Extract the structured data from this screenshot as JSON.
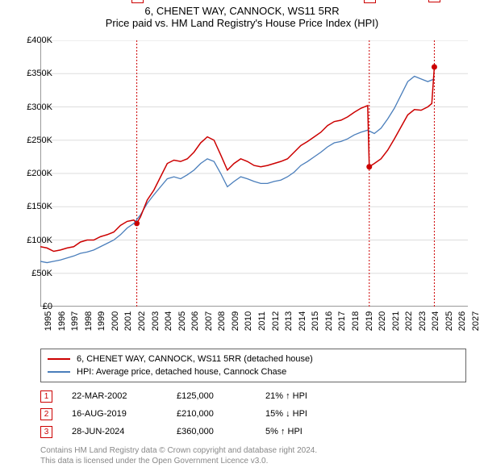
{
  "title_line1": "6, CHENET WAY, CANNOCK, WS11 5RR",
  "title_line2": "Price paid vs. HM Land Registry's House Price Index (HPI)",
  "chart": {
    "type": "line",
    "x_start": 1995,
    "x_end": 2027,
    "y_start": 0,
    "y_end": 400000,
    "y_ticks": [
      0,
      50000,
      100000,
      150000,
      200000,
      250000,
      300000,
      350000,
      400000
    ],
    "y_tick_labels": [
      "£0",
      "£50K",
      "£100K",
      "£150K",
      "£200K",
      "£250K",
      "£300K",
      "£350K",
      "£400K"
    ],
    "x_ticks": [
      1995,
      1996,
      1997,
      1998,
      1999,
      2000,
      2001,
      2002,
      2003,
      2004,
      2005,
      2006,
      2007,
      2008,
      2009,
      2010,
      2011,
      2012,
      2013,
      2014,
      2015,
      2016,
      2017,
      2018,
      2019,
      2020,
      2021,
      2022,
      2023,
      2024,
      2025,
      2026,
      2027
    ],
    "grid_color": "#dddddd",
    "background_color": "#ffffff",
    "axis_color": "#333333",
    "series": [
      {
        "name": "red",
        "color": "#cc0000",
        "width": 1.5,
        "data": [
          [
            1995,
            90000
          ],
          [
            1995.5,
            88000
          ],
          [
            1996,
            83000
          ],
          [
            1996.5,
            85000
          ],
          [
            1997,
            88000
          ],
          [
            1997.5,
            90000
          ],
          [
            1998,
            97000
          ],
          [
            1998.5,
            100000
          ],
          [
            1999,
            100000
          ],
          [
            1999.5,
            105000
          ],
          [
            2000,
            108000
          ],
          [
            2000.5,
            112000
          ],
          [
            2001,
            122000
          ],
          [
            2001.5,
            128000
          ],
          [
            2002,
            130000
          ],
          [
            2002.22,
            125000
          ],
          [
            2002.5,
            135000
          ],
          [
            2003,
            160000
          ],
          [
            2003.5,
            175000
          ],
          [
            2004,
            195000
          ],
          [
            2004.5,
            215000
          ],
          [
            2005,
            220000
          ],
          [
            2005.5,
            218000
          ],
          [
            2006,
            222000
          ],
          [
            2006.5,
            232000
          ],
          [
            2007,
            246000
          ],
          [
            2007.5,
            255000
          ],
          [
            2008,
            250000
          ],
          [
            2008.5,
            228000
          ],
          [
            2009,
            205000
          ],
          [
            2009.5,
            215000
          ],
          [
            2010,
            222000
          ],
          [
            2010.5,
            218000
          ],
          [
            2011,
            212000
          ],
          [
            2011.5,
            210000
          ],
          [
            2012,
            212000
          ],
          [
            2012.5,
            215000
          ],
          [
            2013,
            218000
          ],
          [
            2013.5,
            222000
          ],
          [
            2014,
            232000
          ],
          [
            2014.5,
            242000
          ],
          [
            2015,
            248000
          ],
          [
            2015.5,
            255000
          ],
          [
            2016,
            262000
          ],
          [
            2016.5,
            272000
          ],
          [
            2017,
            278000
          ],
          [
            2017.5,
            280000
          ],
          [
            2018,
            285000
          ],
          [
            2018.5,
            292000
          ],
          [
            2019,
            298000
          ],
          [
            2019.5,
            302000
          ],
          [
            2019.62,
            210000
          ],
          [
            2020,
            215000
          ],
          [
            2020.5,
            222000
          ],
          [
            2021,
            235000
          ],
          [
            2021.5,
            252000
          ],
          [
            2022,
            270000
          ],
          [
            2022.5,
            288000
          ],
          [
            2023,
            296000
          ],
          [
            2023.5,
            295000
          ],
          [
            2024,
            300000
          ],
          [
            2024.3,
            305000
          ],
          [
            2024.49,
            360000
          ]
        ]
      },
      {
        "name": "blue",
        "color": "#4a7ebb",
        "width": 1.3,
        "data": [
          [
            1995,
            68000
          ],
          [
            1995.5,
            66000
          ],
          [
            1996,
            68000
          ],
          [
            1996.5,
            70000
          ],
          [
            1997,
            73000
          ],
          [
            1997.5,
            76000
          ],
          [
            1998,
            80000
          ],
          [
            1998.5,
            82000
          ],
          [
            1999,
            85000
          ],
          [
            1999.5,
            90000
          ],
          [
            2000,
            95000
          ],
          [
            2000.5,
            100000
          ],
          [
            2001,
            108000
          ],
          [
            2001.5,
            118000
          ],
          [
            2002,
            125000
          ],
          [
            2002.5,
            138000
          ],
          [
            2003,
            155000
          ],
          [
            2003.5,
            168000
          ],
          [
            2004,
            180000
          ],
          [
            2004.5,
            192000
          ],
          [
            2005,
            195000
          ],
          [
            2005.5,
            192000
          ],
          [
            2006,
            198000
          ],
          [
            2006.5,
            205000
          ],
          [
            2007,
            215000
          ],
          [
            2007.5,
            222000
          ],
          [
            2008,
            218000
          ],
          [
            2008.5,
            200000
          ],
          [
            2009,
            180000
          ],
          [
            2009.5,
            188000
          ],
          [
            2010,
            195000
          ],
          [
            2010.5,
            192000
          ],
          [
            2011,
            188000
          ],
          [
            2011.5,
            185000
          ],
          [
            2012,
            185000
          ],
          [
            2012.5,
            188000
          ],
          [
            2013,
            190000
          ],
          [
            2013.5,
            195000
          ],
          [
            2014,
            202000
          ],
          [
            2014.5,
            212000
          ],
          [
            2015,
            218000
          ],
          [
            2015.5,
            225000
          ],
          [
            2016,
            232000
          ],
          [
            2016.5,
            240000
          ],
          [
            2017,
            246000
          ],
          [
            2017.5,
            248000
          ],
          [
            2018,
            252000
          ],
          [
            2018.5,
            258000
          ],
          [
            2019,
            262000
          ],
          [
            2019.5,
            265000
          ],
          [
            2020,
            260000
          ],
          [
            2020.5,
            268000
          ],
          [
            2021,
            282000
          ],
          [
            2021.5,
            298000
          ],
          [
            2022,
            318000
          ],
          [
            2022.5,
            338000
          ],
          [
            2023,
            346000
          ],
          [
            2023.5,
            342000
          ],
          [
            2024,
            338000
          ],
          [
            2024.49,
            342000
          ]
        ]
      }
    ],
    "event_markers": [
      {
        "num": "1",
        "x": 2002.22,
        "y": 125000,
        "box_offset_y": -288
      },
      {
        "num": "2",
        "x": 2019.62,
        "y": 210000,
        "box_offset_y": -218
      },
      {
        "num": "3",
        "x": 2024.49,
        "y": 360000,
        "box_offset_y": -95
      }
    ],
    "vline_color": "#cc0000",
    "vline_dash": "2,2"
  },
  "legend": {
    "items": [
      {
        "color": "#cc0000",
        "label": "6, CHENET WAY, CANNOCK, WS11 5RR (detached house)"
      },
      {
        "color": "#4a7ebb",
        "label": "HPI: Average price, detached house, Cannock Chase"
      }
    ]
  },
  "events": [
    {
      "num": "1",
      "date": "22-MAR-2002",
      "price": "£125,000",
      "hpi": "21% ↑ HPI"
    },
    {
      "num": "2",
      "date": "16-AUG-2019",
      "price": "£210,000",
      "hpi": "15% ↓ HPI"
    },
    {
      "num": "3",
      "date": "28-JUN-2024",
      "price": "£360,000",
      "hpi": "5% ↑ HPI"
    }
  ],
  "footer_line1": "Contains HM Land Registry data © Crown copyright and database right 2024.",
  "footer_line2": "This data is licensed under the Open Government Licence v3.0."
}
